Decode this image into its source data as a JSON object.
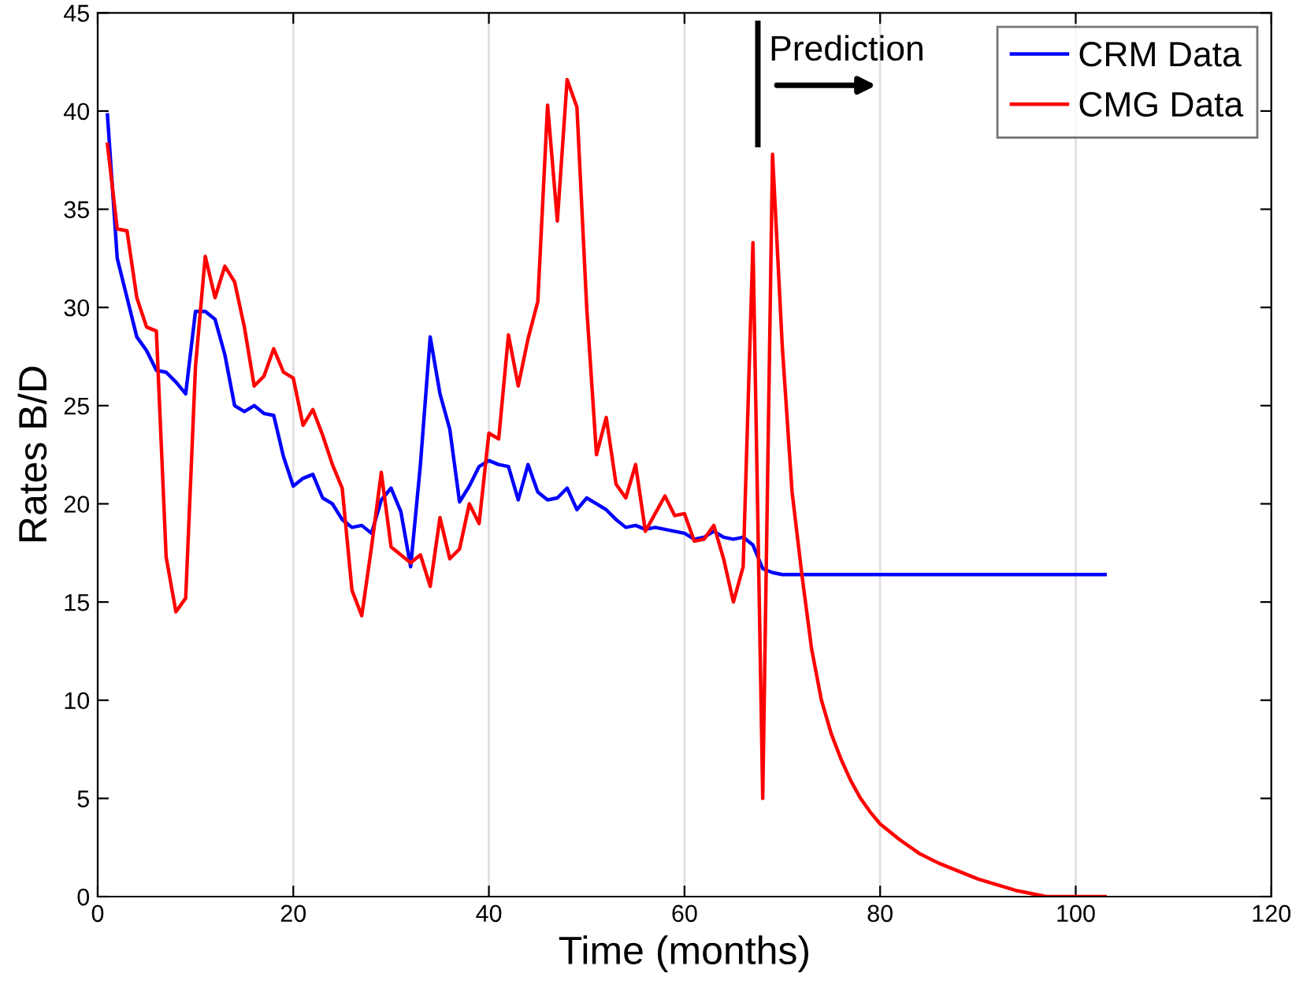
{
  "chart_data": {
    "type": "line",
    "xlabel": "Time (months)",
    "ylabel": "Rates B/D",
    "xlim": [
      0,
      120
    ],
    "xticks": [
      0,
      20,
      40,
      60,
      80,
      100,
      120
    ],
    "ylim": [
      0,
      45
    ],
    "yticks": [
      0,
      5,
      10,
      15,
      20,
      25,
      30,
      35,
      40,
      45
    ],
    "grid": "x",
    "legend": "top right",
    "marker": "none",
    "line_style": "solid",
    "annotations": [
      "Prediction"
    ],
    "series": [
      {
        "name": "CRM Data",
        "color": "#0000ff",
        "x": [
          1,
          2,
          3,
          4,
          5,
          6,
          7,
          8,
          9,
          10,
          11,
          12,
          13,
          14,
          15,
          16,
          17,
          18,
          19,
          20,
          21,
          22,
          23,
          24,
          25,
          26,
          27,
          28,
          29,
          30,
          31,
          32,
          33,
          34,
          35,
          36,
          37,
          38,
          39,
          40,
          41,
          42,
          43,
          44,
          45,
          46,
          47,
          48,
          49,
          50,
          51,
          52,
          53,
          54,
          55,
          56,
          57,
          58,
          59,
          60,
          61,
          62,
          63,
          64,
          65,
          66,
          67,
          68,
          69,
          70,
          103
        ],
        "values": [
          39.8,
          32.5,
          30.5,
          28.5,
          27.8,
          26.8,
          26.7,
          26.2,
          25.6,
          29.8,
          29.8,
          29.4,
          27.6,
          25.0,
          24.7,
          25.0,
          24.6,
          24.5,
          22.4,
          20.9,
          21.3,
          21.5,
          20.3,
          20.0,
          19.2,
          18.8,
          18.9,
          18.5,
          20.2,
          20.8,
          19.6,
          16.8,
          22.0,
          28.5,
          25.6,
          23.8,
          20.1,
          20.9,
          21.9,
          22.2,
          22.0,
          21.9,
          20.2,
          22.0,
          20.6,
          20.2,
          20.3,
          20.8,
          19.7,
          20.3,
          20.0,
          19.7,
          19.2,
          18.8,
          18.9,
          18.7,
          18.8,
          18.7,
          18.6,
          18.5,
          18.2,
          18.3,
          18.6,
          18.3,
          18.2,
          18.3,
          17.9,
          16.7,
          16.5,
          16.4,
          16.4
        ]
      },
      {
        "name": "CMG Data",
        "color": "#ff0000",
        "x": [
          1,
          2,
          3,
          4,
          5,
          6,
          7,
          8,
          9,
          10,
          11,
          12,
          13,
          14,
          15,
          16,
          17,
          18,
          19,
          20,
          21,
          22,
          23,
          24,
          25,
          26,
          27,
          28,
          29,
          30,
          31,
          32,
          33,
          34,
          35,
          36,
          37,
          38,
          39,
          40,
          41,
          42,
          43,
          44,
          45,
          46,
          47,
          48,
          49,
          50,
          51,
          52,
          53,
          54,
          55,
          56,
          57,
          58,
          59,
          60,
          61,
          62,
          63,
          64,
          65,
          66,
          67,
          68,
          69,
          70,
          71,
          72,
          73,
          74,
          75,
          76,
          77,
          78,
          79,
          80,
          82,
          84,
          86,
          88,
          90,
          92,
          94,
          96,
          97,
          103
        ],
        "values": [
          38.3,
          34.0,
          33.9,
          30.5,
          29.0,
          28.8,
          17.3,
          14.5,
          15.2,
          27.0,
          32.6,
          30.5,
          32.1,
          31.3,
          29.0,
          26.0,
          26.5,
          27.9,
          26.7,
          26.4,
          24.0,
          24.8,
          23.5,
          22.0,
          20.8,
          15.6,
          14.3,
          17.8,
          21.6,
          17.8,
          17.4,
          17.0,
          17.4,
          15.8,
          19.3,
          17.2,
          17.7,
          20.0,
          19.0,
          23.6,
          23.3,
          28.6,
          26.0,
          28.4,
          30.3,
          40.3,
          34.4,
          41.6,
          40.2,
          30.0,
          22.5,
          24.4,
          21.0,
          20.3,
          22.0,
          18.6,
          19.5,
          20.4,
          19.4,
          19.5,
          18.1,
          18.2,
          18.9,
          17.2,
          15.0,
          16.8,
          33.3,
          5.0,
          37.8,
          28.0,
          20.6,
          16.4,
          12.6,
          10.0,
          8.3,
          7.0,
          5.9,
          5.0,
          4.3,
          3.7,
          2.9,
          2.2,
          1.7,
          1.3,
          0.9,
          0.6,
          0.3,
          0.1,
          0,
          0
        ]
      }
    ]
  }
}
